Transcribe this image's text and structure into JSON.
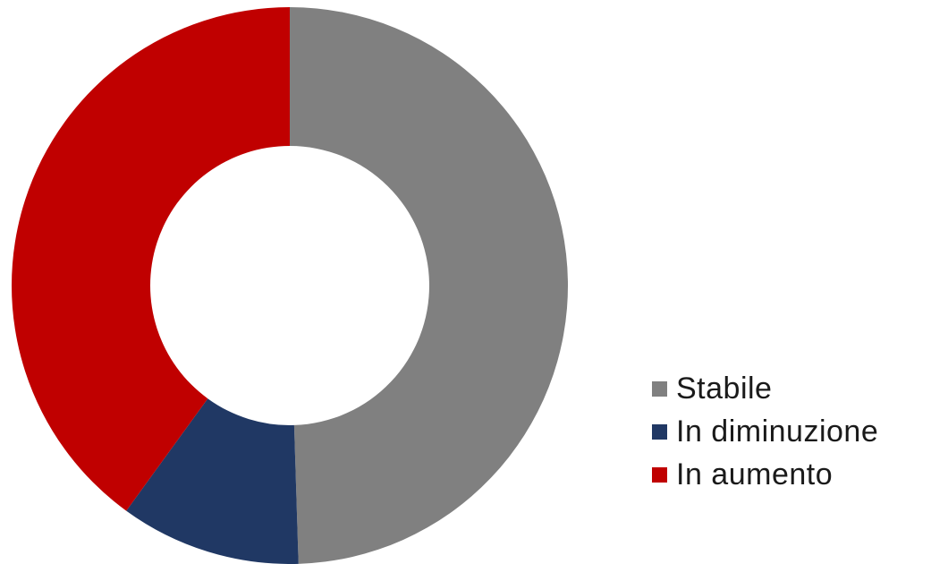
{
  "chart_data": {
    "type": "pie",
    "donut": true,
    "title": "",
    "legend_position": "right-bottom",
    "series": [
      {
        "name": "Stabile",
        "value": 49.5,
        "color": "#808080"
      },
      {
        "name": "In diminuzione",
        "value": 10.5,
        "color": "#203864"
      },
      {
        "name": "In aumento",
        "value": 40.0,
        "color": "#C00000"
      }
    ]
  }
}
